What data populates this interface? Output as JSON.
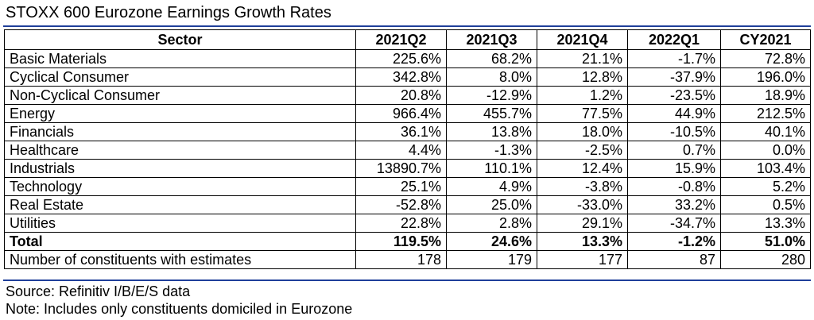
{
  "title": "STOXX 600 Eurozone Earnings Growth Rates",
  "table": {
    "headers": [
      "Sector",
      "2021Q2",
      "2021Q3",
      "2021Q4",
      "2022Q1",
      "CY2021"
    ],
    "rows": [
      [
        "Basic Materials",
        "225.6%",
        "68.2%",
        "21.1%",
        "-1.7%",
        "72.8%"
      ],
      [
        "Cyclical Consumer",
        "342.8%",
        "8.0%",
        "12.8%",
        "-37.9%",
        "196.0%"
      ],
      [
        "Non-Cyclical Consumer",
        "20.8%",
        "-12.9%",
        "1.2%",
        "-23.5%",
        "18.9%"
      ],
      [
        "Energy",
        "966.4%",
        "455.7%",
        "77.5%",
        "44.9%",
        "212.5%"
      ],
      [
        "Financials",
        "36.1%",
        "13.8%",
        "18.0%",
        "-10.5%",
        "40.1%"
      ],
      [
        "Healthcare",
        "4.4%",
        "-1.3%",
        "-2.5%",
        "0.7%",
        "0.0%"
      ],
      [
        "Industrials",
        "13890.7%",
        "110.1%",
        "12.4%",
        "15.9%",
        "103.4%"
      ],
      [
        "Technology",
        "25.1%",
        "4.9%",
        "-3.8%",
        "-0.8%",
        "5.2%"
      ],
      [
        "Real Estate",
        "-52.8%",
        "25.0%",
        "-33.0%",
        "33.2%",
        "0.5%"
      ],
      [
        "Utilities",
        "22.8%",
        "2.8%",
        "29.1%",
        "-34.7%",
        "13.3%"
      ]
    ],
    "total": [
      "Total",
      "119.5%",
      "24.6%",
      "13.3%",
      "-1.2%",
      "51.0%"
    ],
    "constituents": [
      "Number of constituents with estimates",
      "178",
      "179",
      "177",
      "87",
      "280"
    ]
  },
  "source": "Source: Refinitiv I/B/E/S data",
  "note": "Note: Includes only constituents domiciled in Eurozone",
  "colors": {
    "rule": "#1f3f9a"
  }
}
